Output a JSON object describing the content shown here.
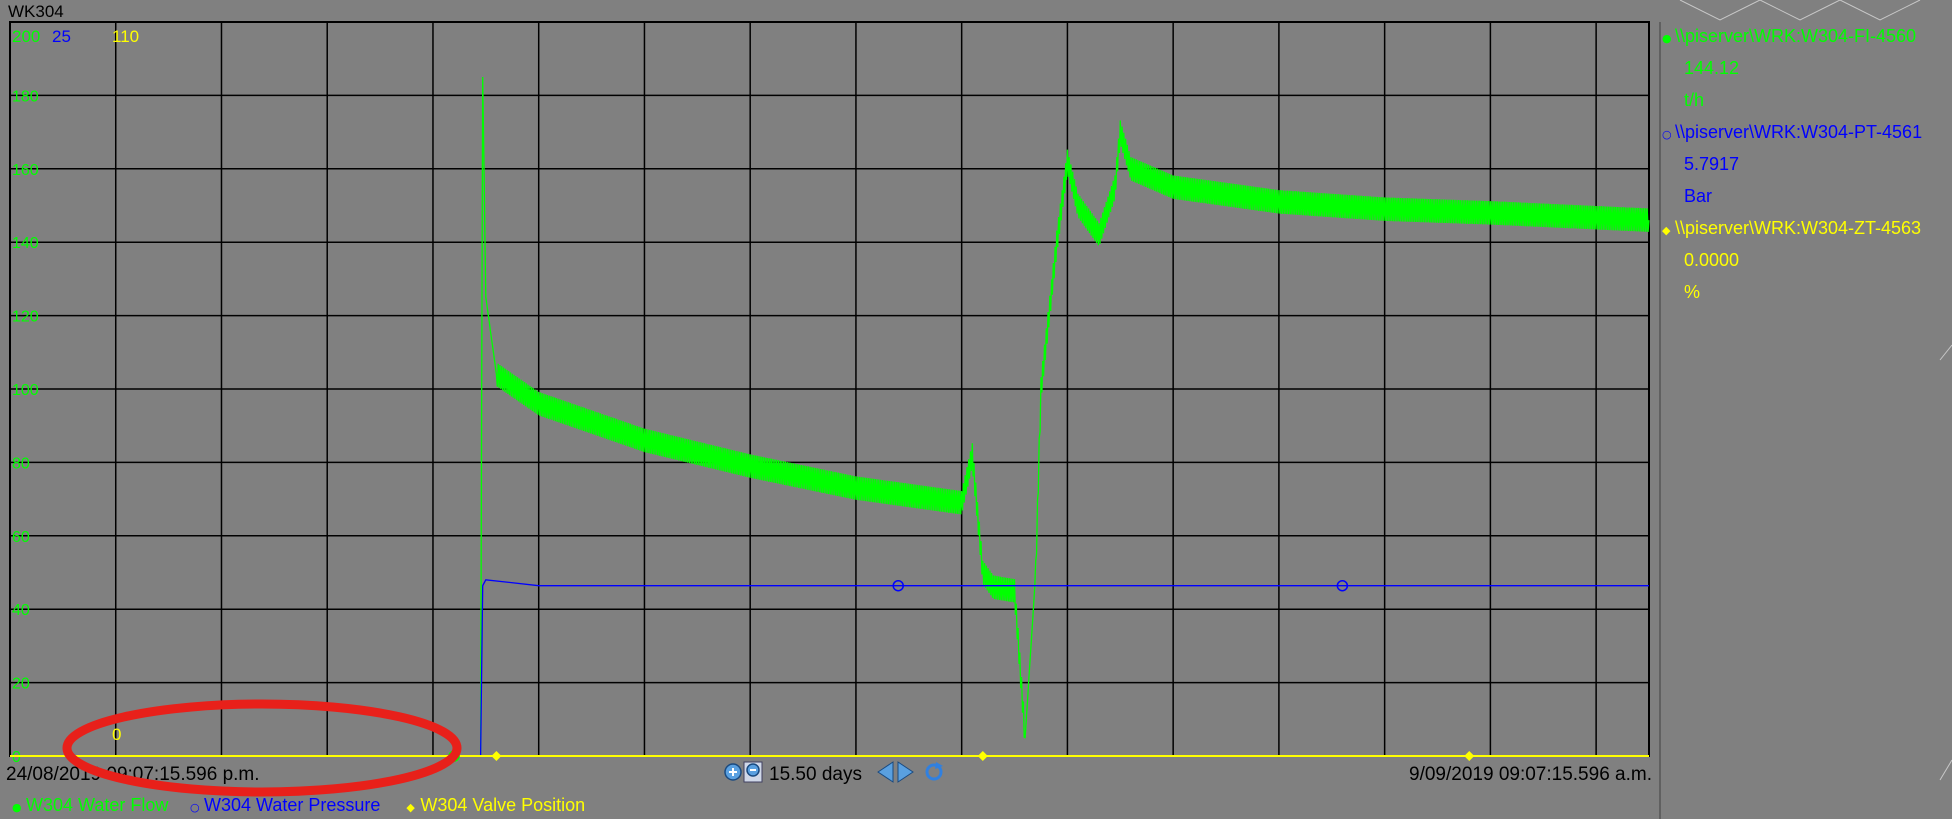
{
  "trend": {
    "title": "WK304",
    "scale_labels": {
      "flow_max": "200",
      "pressure_max": "25",
      "valve_max": "110",
      "valve_min": "0"
    },
    "time_start": "24/08/2019 09:07:15.596 p.m.",
    "time_end": "9/09/2019 09:07:15.596 a.m.",
    "time_span": "15.50 days"
  },
  "side_legend": [
    {
      "tag": "\\\\piserver\\WRK:W304-FI-4560",
      "value": "144.12",
      "unit": "t/h",
      "color": "#00ff00",
      "marker": "●"
    },
    {
      "tag": "\\\\piserver\\WRK:W304-PT-4561",
      "value": "5.7917",
      "unit": "Bar",
      "color": "#0000ff",
      "marker": "○"
    },
    {
      "tag": "\\\\piserver\\WRK:W304-ZT-4563",
      "value": "0.0000",
      "unit": "%",
      "color": "#ffff00",
      "marker": "◆"
    }
  ],
  "bottom_legend": [
    {
      "label": "W304 Water Flow",
      "color": "#00ff00",
      "marker": "●"
    },
    {
      "label": "W304 Water Pressure",
      "color": "#0000ff",
      "marker": "○"
    },
    {
      "label": "W304 Valve Position",
      "color": "#ffff00",
      "marker": "◆"
    }
  ],
  "colors": {
    "background": "#808080",
    "grid": "#000000",
    "annotation": "#e8201a"
  },
  "icons": [
    "zoom-in-icon",
    "zoom-out-icon",
    "scroll-left-icon",
    "scroll-right-icon",
    "refresh-icon"
  ],
  "chart_data": {
    "type": "line",
    "title": "WK304",
    "x_range": [
      "24/08/2019 09:07:15.596 p.m.",
      "9/09/2019 09:07:15.596 a.m."
    ],
    "x_unit": "days since 24/08/2019 09:07:15.596 p.m.",
    "ylim": [
      0,
      200
    ],
    "y_ticks": [
      0,
      20,
      40,
      60,
      80,
      100,
      120,
      140,
      160,
      180,
      200
    ],
    "grid": true,
    "legend_position": "right",
    "series": [
      {
        "name": "W304 Water Flow",
        "unit": "t/h",
        "color": "#00ff00",
        "x": [
          0,
          4.45,
          4.47,
          4.5,
          4.6,
          5.0,
          6.0,
          7.0,
          8.0,
          9.0,
          9.1,
          9.2,
          9.3,
          9.5,
          9.6,
          9.7,
          9.75,
          9.9,
          10.0,
          10.1,
          10.3,
          10.45,
          10.5,
          10.6,
          11.0,
          12.0,
          13.0,
          14.0,
          15.5
        ],
        "values": [
          0,
          0,
          185,
          125,
          104,
          96,
          86,
          79,
          73,
          69,
          82,
          50,
          46,
          45,
          5,
          50,
          100,
          140,
          162,
          150,
          142,
          155,
          170,
          160,
          155,
          151,
          149,
          148,
          146
        ]
      },
      {
        "name": "W304 Water Pressure",
        "unit": "Bar",
        "color": "#0000ff",
        "x": [
          0,
          4.45,
          4.47,
          4.5,
          5.0,
          6.0,
          8.0,
          10.0,
          12.0,
          14.0,
          15.5
        ],
        "values": [
          0,
          0,
          5.8,
          6.0,
          5.8,
          5.8,
          5.8,
          5.8,
          5.8,
          5.8,
          5.8
        ]
      },
      {
        "name": "W304 Valve Position",
        "unit": "%",
        "color": "#ffff00",
        "x": [
          0,
          15.5
        ],
        "values": [
          0,
          0
        ]
      }
    ]
  }
}
